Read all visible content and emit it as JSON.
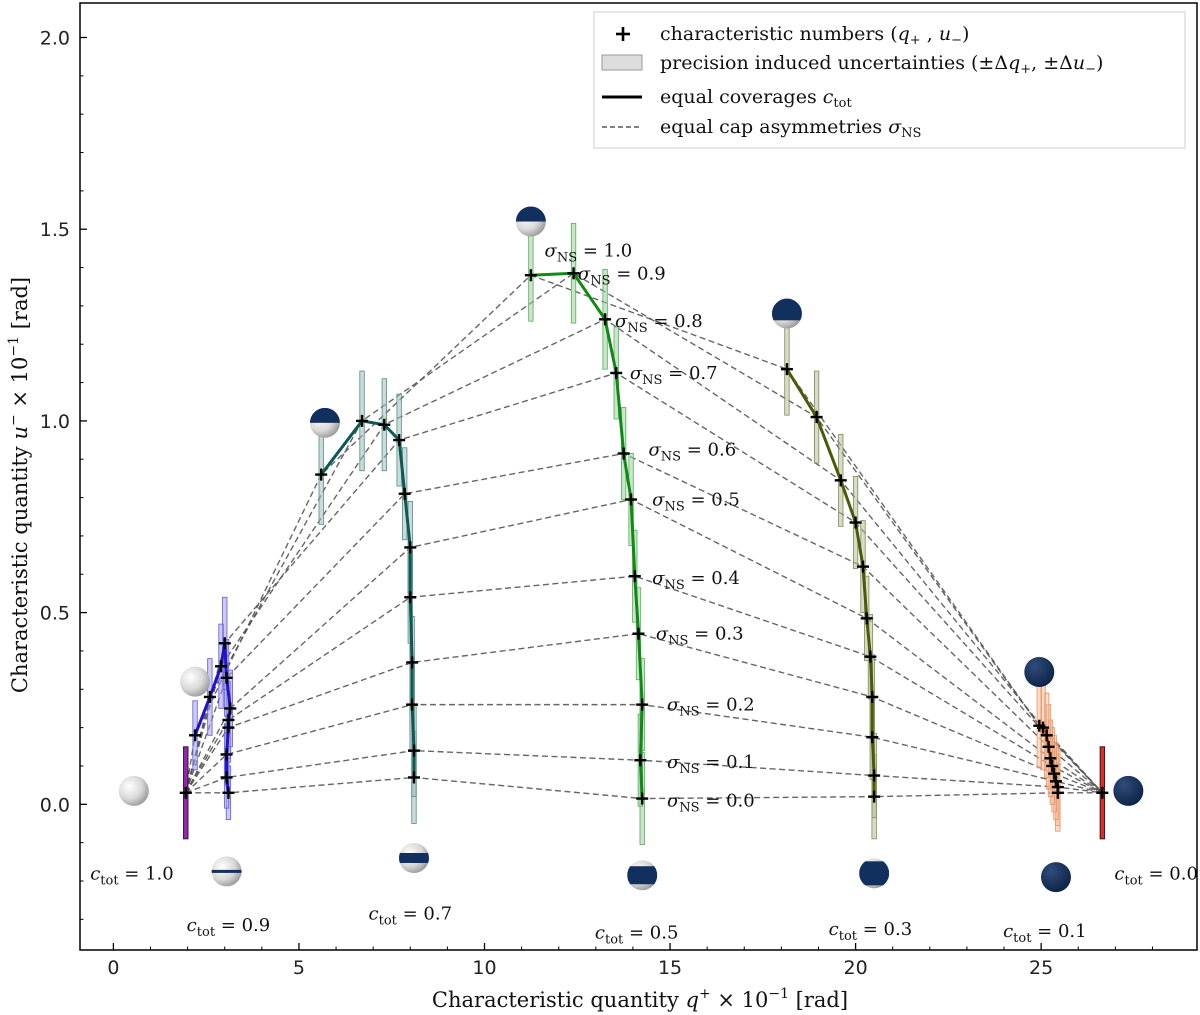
{
  "chart_data": {
    "type": "scatter",
    "xlabel": "Characteristic quantity q₊ × 10⁻¹ [rad]",
    "ylabel": "Characteristic quantity u₋ × 10⁻¹ [rad]",
    "xlim": [
      -0.9,
      29.2
    ],
    "ylim": [
      -0.38,
      2.09
    ],
    "xticks": [
      0,
      5,
      10,
      15,
      20,
      25
    ],
    "yticks": [
      0.0,
      0.5,
      1.0,
      1.5,
      2.0
    ],
    "grid": false,
    "legend_position": "top-right",
    "legend": [
      {
        "marker": "cross",
        "text": "characteristic numbers (q₊ , u₋)"
      },
      {
        "marker": "rect",
        "text": "precision induced uncertainties (± Δq₊ , ± Δu₋)"
      },
      {
        "marker": "solid-line",
        "text": "equal coverages c_tot"
      },
      {
        "marker": "dashed-line",
        "text": "equal cap asymmetries σ_NS"
      }
    ],
    "sigma_levels": [
      "0.0",
      "0.1",
      "0.2",
      "0.3",
      "0.4",
      "0.5",
      "0.6",
      "0.7",
      "0.8",
      "0.9",
      "1.0"
    ],
    "series": [
      {
        "name": "c_tot = 1.0",
        "color": "#9b12b8",
        "x": [
          1.95
        ],
        "y": [
          0.03
        ],
        "err_x": [
          0.12
        ],
        "err_y": [
          0.12
        ]
      },
      {
        "name": "c_tot = 0.9",
        "color": "#1e14c8",
        "x": [
          3.1,
          3.05,
          3.05,
          3.1,
          3.1,
          3.15,
          3.05,
          3.0,
          2.9,
          2.6,
          2.2
        ],
        "y": [
          0.03,
          0.07,
          0.13,
          0.2,
          0.22,
          0.25,
          0.33,
          0.42,
          0.36,
          0.28,
          0.18
        ],
        "err_x": [
          0.12,
          0.12,
          0.12,
          0.12,
          0.12,
          0.12,
          0.12,
          0.12,
          0.12,
          0.12,
          0.12
        ],
        "err_y": [
          0.07,
          0.08,
          0.08,
          0.09,
          0.1,
          0.1,
          0.1,
          0.12,
          0.11,
          0.1,
          0.09
        ]
      },
      {
        "name": "c_tot = 0.7",
        "color": "#0d5a55",
        "x": [
          8.1,
          8.1,
          8.05,
          8.05,
          8.0,
          8.0,
          7.85,
          7.7,
          7.3,
          6.7,
          5.6
        ],
        "y": [
          0.07,
          0.14,
          0.26,
          0.37,
          0.54,
          0.67,
          0.81,
          0.95,
          0.99,
          1.0,
          0.86
        ],
        "err_x": [
          0.12,
          0.12,
          0.12,
          0.12,
          0.12,
          0.12,
          0.12,
          0.12,
          0.12,
          0.12,
          0.12
        ],
        "err_y": [
          0.12,
          0.12,
          0.12,
          0.12,
          0.12,
          0.12,
          0.12,
          0.12,
          0.12,
          0.13,
          0.13
        ]
      },
      {
        "name": "c_tot = 0.5",
        "color": "#0f8a12",
        "x": [
          14.25,
          14.2,
          14.25,
          14.15,
          14.05,
          13.95,
          13.75,
          13.55,
          13.25,
          12.4,
          11.25
        ],
        "y": [
          0.015,
          0.115,
          0.26,
          0.445,
          0.595,
          0.795,
          0.915,
          1.125,
          1.265,
          1.385,
          1.38
        ],
        "err_x": [
          0.12,
          0.12,
          0.12,
          0.12,
          0.12,
          0.12,
          0.12,
          0.12,
          0.12,
          0.12,
          0.12
        ],
        "err_y": [
          0.12,
          0.12,
          0.12,
          0.12,
          0.12,
          0.12,
          0.12,
          0.12,
          0.13,
          0.13,
          0.12
        ]
      },
      {
        "name": "c_tot = 0.3",
        "color": "#4a5a08",
        "x": [
          20.5,
          20.5,
          20.45,
          20.45,
          20.4,
          20.3,
          20.2,
          20.0,
          19.6,
          18.95,
          18.15
        ],
        "y": [
          0.02,
          0.075,
          0.175,
          0.28,
          0.385,
          0.485,
          0.62,
          0.735,
          0.845,
          1.01,
          1.135
        ],
        "err_x": [
          0.12,
          0.12,
          0.12,
          0.12,
          0.12,
          0.12,
          0.12,
          0.12,
          0.12,
          0.12,
          0.12
        ],
        "err_y": [
          0.11,
          0.11,
          0.11,
          0.11,
          0.11,
          0.11,
          0.12,
          0.12,
          0.12,
          0.12,
          0.12
        ]
      },
      {
        "name": "c_tot = 0.1",
        "color": "#e0601a",
        "x": [
          25.45,
          25.45,
          25.4,
          25.35,
          25.3,
          25.25,
          25.2,
          25.15,
          25.05,
          24.95
        ],
        "y": [
          0.03,
          0.045,
          0.06,
          0.08,
          0.1,
          0.12,
          0.15,
          0.18,
          0.2,
          0.205
        ],
        "err_x": [
          0.12,
          0.12,
          0.12,
          0.12,
          0.12,
          0.12,
          0.12,
          0.12,
          0.12,
          0.12
        ],
        "err_y": [
          0.1,
          0.1,
          0.1,
          0.1,
          0.1,
          0.1,
          0.11,
          0.11,
          0.11,
          0.11
        ]
      },
      {
        "name": "c_tot = 0.0",
        "color": "#e0201c",
        "x": [
          26.65
        ],
        "y": [
          0.03
        ],
        "err_x": [
          0.12
        ],
        "err_y": [
          0.12
        ]
      }
    ],
    "coverage_labels": [
      {
        "value": "1.0",
        "x": 0.5,
        "y": -0.18
      },
      {
        "value": "0.9",
        "x": 3.1,
        "y": -0.315
      },
      {
        "value": "0.7",
        "x": 8.0,
        "y": -0.285
      },
      {
        "value": "0.5",
        "x": 14.1,
        "y": -0.335
      },
      {
        "value": "0.3",
        "x": 20.4,
        "y": -0.325
      },
      {
        "value": "0.1",
        "x": 25.1,
        "y": -0.33
      },
      {
        "value": "0.0",
        "x": 28.1,
        "y": -0.18
      }
    ],
    "sigma_labels": [
      {
        "value": "0.0",
        "x": 16.1,
        "y": 0.01
      },
      {
        "value": "0.1",
        "x": 16.1,
        "y": 0.11
      },
      {
        "value": "0.2",
        "x": 16.1,
        "y": 0.26
      },
      {
        "value": "0.3",
        "x": 15.8,
        "y": 0.445
      },
      {
        "value": "0.4",
        "x": 15.7,
        "y": 0.59
      },
      {
        "value": "0.5",
        "x": 15.7,
        "y": 0.795
      },
      {
        "value": "0.6",
        "x": 15.6,
        "y": 0.925
      },
      {
        "value": "0.7",
        "x": 15.1,
        "y": 1.125
      },
      {
        "value": "0.8",
        "x": 14.7,
        "y": 1.26
      },
      {
        "value": "0.9",
        "x": 13.7,
        "y": 1.385
      },
      {
        "value": "1.0",
        "x": 12.8,
        "y": 1.445
      }
    ],
    "glyphs": [
      {
        "x": 0.55,
        "y": 0.035,
        "cap": "none"
      },
      {
        "x": 3.05,
        "y": -0.175,
        "cap": "equator"
      },
      {
        "x": 2.2,
        "y": 0.32,
        "cap": "none"
      },
      {
        "x": 8.1,
        "y": -0.14,
        "cap": "band"
      },
      {
        "x": 5.7,
        "y": 0.995,
        "cap": "top-half"
      },
      {
        "x": 14.25,
        "y": -0.185,
        "cap": "wide-band"
      },
      {
        "x": 11.25,
        "y": 1.52,
        "cap": "top-half"
      },
      {
        "x": 20.5,
        "y": -0.18,
        "cap": "most"
      },
      {
        "x": 18.15,
        "y": 1.28,
        "cap": "top-most"
      },
      {
        "x": 25.4,
        "y": -0.19,
        "cap": "full"
      },
      {
        "x": 24.95,
        "y": 0.345,
        "cap": "full"
      },
      {
        "x": 27.35,
        "y": 0.035,
        "cap": "full"
      }
    ]
  }
}
